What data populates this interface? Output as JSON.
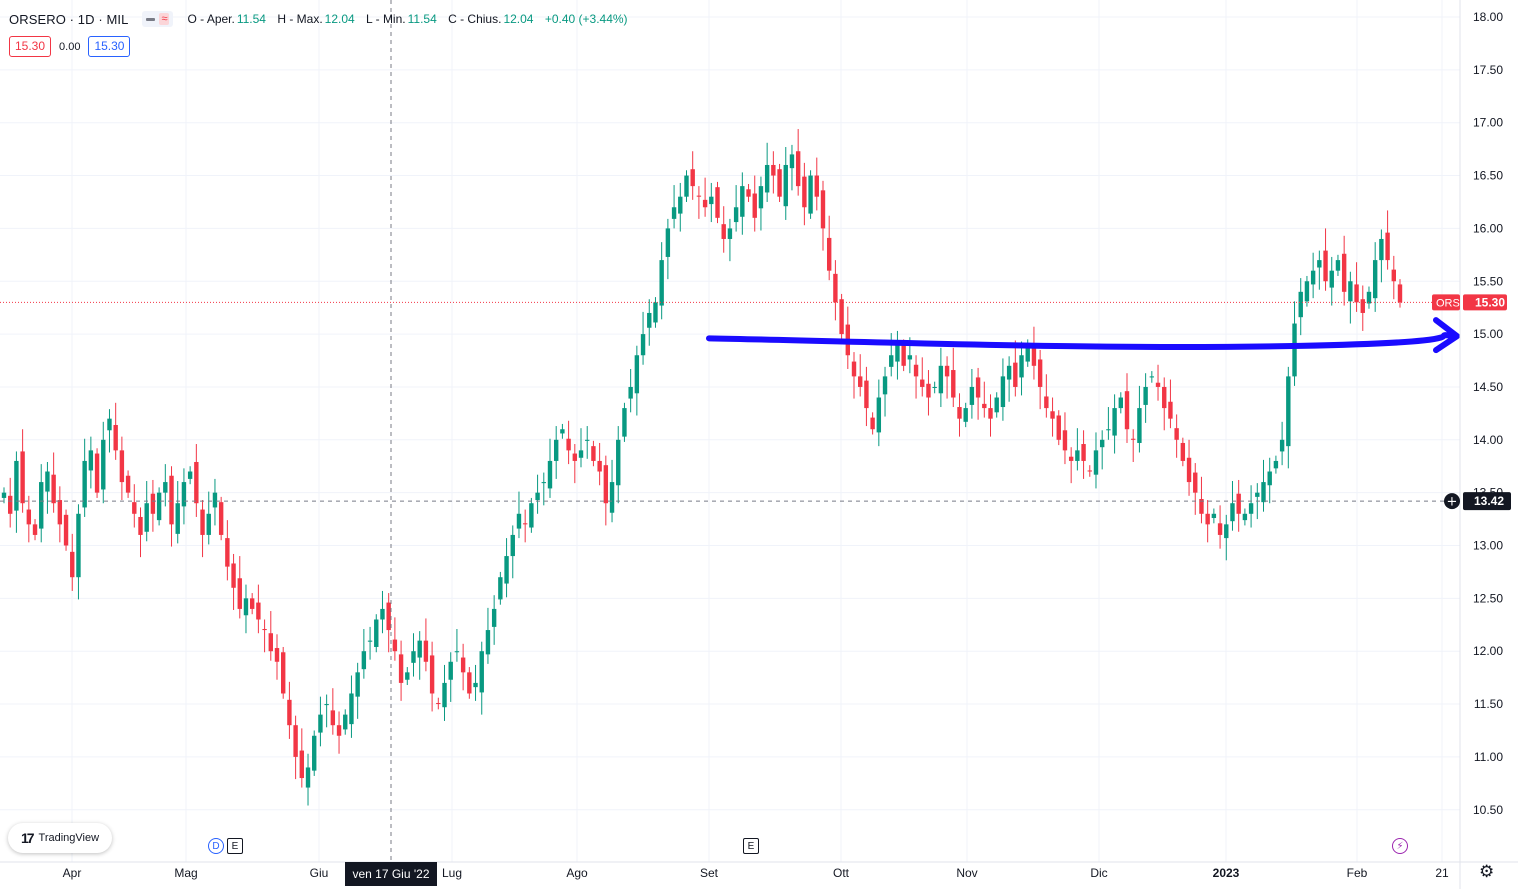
{
  "header": {
    "symbol": "ORSERO · 1D · MIL",
    "ohlc": {
      "o_label": "O - Aper.",
      "o_value": "11.54",
      "h_label": "H - Max.",
      "h_value": "12.04",
      "l_label": "L - Min.",
      "l_value": "11.54",
      "c_label": "C - Chius.",
      "c_value": "12.04",
      "change": "+0.40 (+3.44%)"
    },
    "bid": "15.30",
    "spread": "0.00",
    "ask": "15.30"
  },
  "colors": {
    "up": "#089981",
    "down": "#f23645",
    "trendline": "#1a0bff",
    "grid": "#f0f3fa",
    "axis_text": "#131722"
  },
  "markers": {
    "dividend": "D",
    "earnings": "E",
    "earnings2": "E"
  },
  "branding": {
    "logo_text": "TradingView"
  },
  "icons": {
    "settings": "gear-icon",
    "event": "bolt-icon"
  },
  "chart_data": {
    "type": "candlestick",
    "y_axis": {
      "min": 10.25,
      "max": 18.0,
      "ticks": [
        "18.00",
        "17.50",
        "17.00",
        "16.50",
        "16.00",
        "15.50",
        "15.00",
        "14.50",
        "14.00",
        "13.50",
        "13.00",
        "12.50",
        "12.00",
        "11.50",
        "11.00",
        "10.50"
      ]
    },
    "x_axis": {
      "labels": [
        "Apr",
        "Mag",
        "Giu",
        "Lug",
        "Ago",
        "Set",
        "Ott",
        "Nov",
        "Dic",
        "2023",
        "Feb",
        "21"
      ],
      "crosshair_label": "ven 17 Giu '22"
    },
    "last_price": {
      "symbol": "ORS",
      "value": "15.30"
    },
    "crosshair_price": "13.42",
    "annotation": {
      "type": "hand-drawn-arrow",
      "from": {
        "date": "2022-09-01",
        "price": 14.96
      },
      "to": {
        "date": "2023-02-17",
        "price": 15.0
      }
    },
    "closes": [
      13.5,
      13.3,
      13.8,
      13.4,
      13.2,
      13.1,
      13.6,
      13.7,
      13.4,
      13.2,
      13.0,
      12.7,
      13.3,
      13.8,
      13.9,
      13.5,
      14.0,
      14.2,
      13.9,
      13.6,
      13.5,
      13.3,
      13.1,
      13.4,
      13.3,
      13.5,
      13.6,
      13.2,
      13.4,
      13.6,
      13.7,
      13.4,
      13.1,
      13.3,
      13.5,
      13.1,
      12.8,
      12.6,
      12.4,
      12.5,
      12.4,
      12.3,
      12.2,
      12.0,
      11.9,
      11.6,
      11.3,
      11.0,
      10.8,
      10.9,
      11.2,
      11.4,
      11.5,
      11.3,
      11.2,
      11.4,
      11.6,
      11.8,
      12.0,
      12.1,
      12.3,
      12.4,
      12.2,
      12.0,
      11.7,
      11.8,
      12.0,
      12.1,
      11.9,
      11.6,
      11.5,
      11.7,
      11.9,
      12.0,
      11.8,
      11.6,
      11.7,
      12.0,
      12.2,
      12.4,
      12.7,
      12.9,
      13.1,
      13.3,
      13.2,
      13.4,
      13.5,
      13.6,
      13.8,
      14.0,
      14.1,
      13.9,
      13.8,
      13.9,
      14.0,
      13.8,
      13.7,
      13.4,
      13.6,
      14.0,
      14.3,
      14.5,
      14.8,
      15.0,
      15.2,
      15.3,
      15.7,
      16.0,
      16.2,
      16.3,
      16.5,
      16.4,
      16.3,
      16.2,
      16.3,
      16.1,
      15.9,
      16.0,
      16.2,
      16.4,
      16.3,
      16.1,
      16.4,
      16.6,
      16.5,
      16.3,
      16.6,
      16.7,
      16.4,
      16.2,
      16.5,
      16.3,
      16.0,
      15.6,
      15.3,
      15.0,
      14.8,
      14.6,
      14.5,
      14.3,
      14.1,
      14.4,
      14.6,
      14.8,
      14.9,
      14.7,
      14.8,
      14.6,
      14.5,
      14.4,
      14.5,
      14.7,
      14.6,
      14.4,
      14.2,
      14.3,
      14.5,
      14.4,
      14.3,
      14.2,
      14.4,
      14.6,
      14.7,
      14.5,
      14.8,
      14.9,
      14.7,
      14.5,
      14.3,
      14.2,
      14.0,
      13.9,
      13.8,
      13.9,
      13.8,
      13.7,
      13.9,
      14.0,
      14.1,
      14.3,
      14.4,
      14.1,
      14.0,
      14.3,
      14.5,
      14.6,
      14.5,
      14.3,
      14.2,
      14.0,
      13.8,
      13.6,
      13.5,
      13.3,
      13.2,
      13.3,
      13.1,
      13.2,
      13.4,
      13.3,
      13.3,
      13.4,
      13.5,
      13.6,
      13.7,
      13.8,
      14.0,
      14.6,
      15.1,
      15.4,
      15.5,
      15.6,
      15.7,
      15.5,
      15.6,
      15.7,
      15.4,
      15.5,
      15.3,
      15.2,
      15.4,
      15.7,
      15.9,
      15.7,
      15.5,
      15.3
    ]
  }
}
